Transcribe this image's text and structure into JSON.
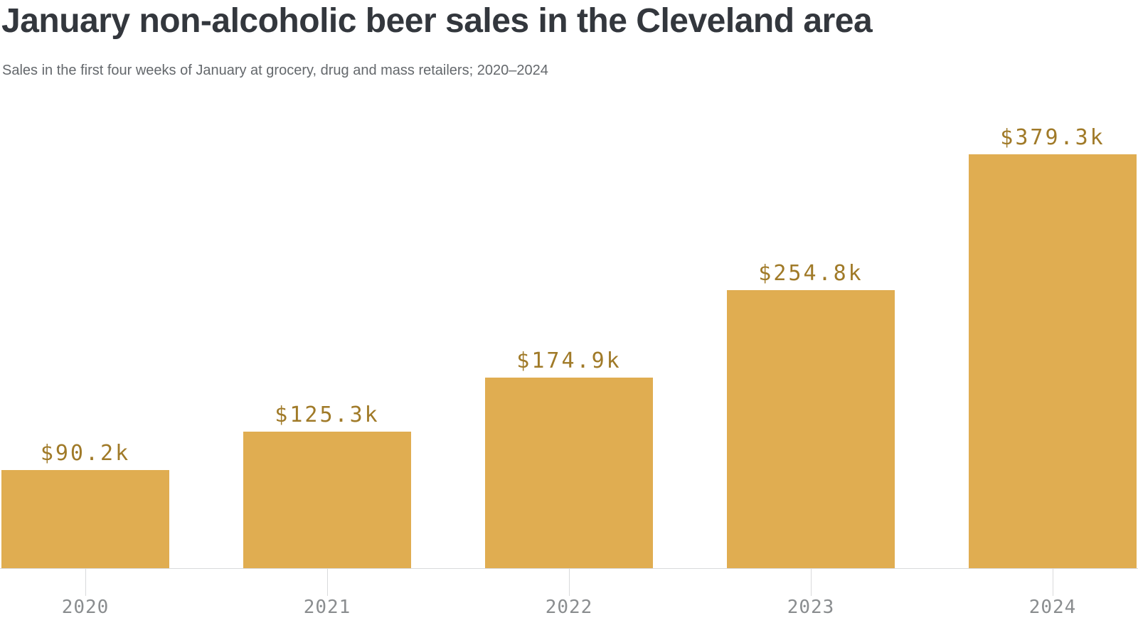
{
  "header": {
    "title": "January non-alcoholic beer sales in the Cleveland area",
    "subtitle": "Sales in the first four weeks of January at grocery, drug and mass retailers; 2020–2024"
  },
  "chart_data": {
    "type": "bar",
    "title": "January non-alcoholic beer sales in the Cleveland area",
    "subtitle": "Sales in the first four weeks of January at grocery, drug and mass retailers; 2020–2024",
    "categories": [
      "2020",
      "2021",
      "2022",
      "2023",
      "2024"
    ],
    "values": [
      90.2,
      125.3,
      174.9,
      254.8,
      379.3
    ],
    "value_labels": [
      "$90.2k",
      "$125.3k",
      "$174.9k",
      "$254.8k",
      "$379.3k"
    ],
    "unit": "USD thousands",
    "ylim": [
      0,
      379.3
    ],
    "grid": false,
    "legend": false,
    "colors": {
      "bar": "#e0ad51",
      "value_label": "#a07a28",
      "axis_label": "#8a8d8f",
      "axis_line": "#d9dadb",
      "title": "#33373d",
      "subtitle": "#64686c",
      "background": "#ffffff"
    }
  }
}
